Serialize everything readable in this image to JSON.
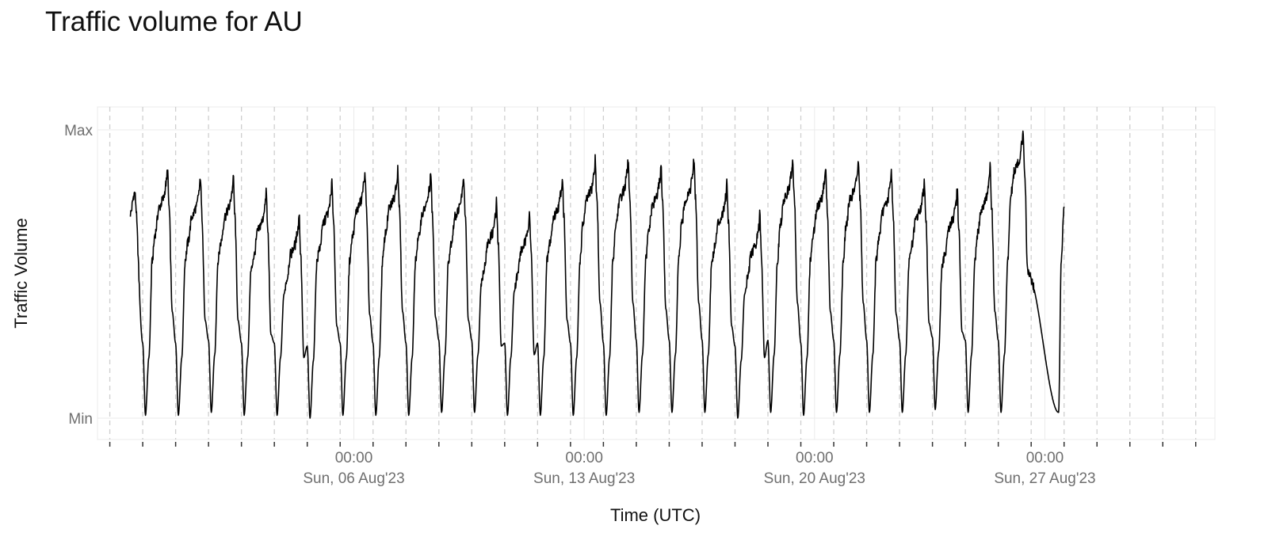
{
  "chart_data": {
    "type": "line",
    "title": "Traffic volume for AU",
    "xlabel": "Time (UTC)",
    "ylabel": "Traffic Volume",
    "y_tick_labels": [
      "Min",
      "Max"
    ],
    "ylim": [
      0,
      1
    ],
    "x_range": [
      "2023-07-29T05:00",
      "2023-09-01T04:00"
    ],
    "x_tick_labels": [
      {
        "x": "2023-08-06T00:00",
        "time": "00:00",
        "date": "Sun, 06 Aug'23"
      },
      {
        "x": "2023-08-13T00:00",
        "time": "00:00",
        "date": "Sun, 13 Aug'23"
      },
      {
        "x": "2023-08-20T00:00",
        "time": "00:00",
        "date": "Sun, 20 Aug'23"
      },
      {
        "x": "2023-08-27T00:00",
        "time": "00:00",
        "date": "Sun, 27 Aug'23"
      }
    ],
    "dashed_gridlines": "daily, 00:00 +10:00",
    "grid": true,
    "series": [
      {
        "x_start": "2023-07-30T05:00",
        "x_end": "2023-08-27T14:00",
        "daily_pattern": "daily peak around 08:00 UTC, daily minimum around 16:00 UTC",
        "daily_peaks": [
          0.87,
          0.84,
          0.84,
          0.79,
          0.71,
          0.82,
          0.86,
          0.87,
          0.85,
          0.84,
          0.75,
          0.72,
          0.84,
          0.9,
          0.9,
          0.88,
          0.9,
          0.82,
          0.71,
          0.9,
          0.87,
          0.9,
          0.86,
          0.83,
          0.8,
          0.87,
          1.0
        ],
        "daily_minima": [
          0.01,
          0.01,
          0.02,
          0.01,
          0.01,
          0.0,
          0.01,
          0.01,
          0.01,
          0.02,
          0.02,
          0.01,
          0.01,
          0.01,
          0.01,
          0.02,
          0.02,
          0.02,
          0.0,
          0.02,
          0.01,
          0.02,
          0.02,
          0.02,
          0.03,
          0.02,
          0.02
        ],
        "end_value": 0.74
      }
    ]
  }
}
